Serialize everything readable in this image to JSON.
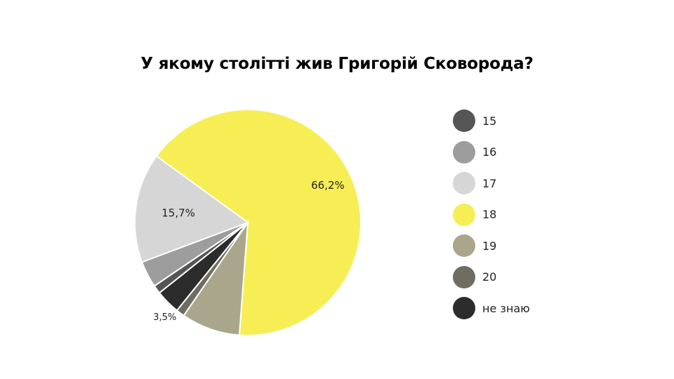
{
  "chart_data": {
    "type": "pie",
    "title": "У якому столітті жив Григорій Сковорода?",
    "start_angle_deg": -144,
    "direction": "clockwise",
    "slices": [
      {
        "name": "18",
        "value": 66.2,
        "color": "#f7ee55",
        "label": "66,2%"
      },
      {
        "name": "19",
        "value": 8.4,
        "color": "#a9a68c",
        "label": ""
      },
      {
        "name": "20",
        "value": 1.2,
        "color": "#6f6c61",
        "label": ""
      },
      {
        "name": "не знаю",
        "value": 3.5,
        "color": "#2c2c2c",
        "label": "3,5%"
      },
      {
        "name": "15",
        "value": 1.2,
        "color": "#555555",
        "label": ""
      },
      {
        "name": "16",
        "value": 3.8,
        "color": "#9d9d9d",
        "label": ""
      },
      {
        "name": "17",
        "value": 15.7,
        "color": "#d6d6d6",
        "label": "15,7%"
      }
    ],
    "legend": {
      "placement": "right",
      "items": [
        {
          "name": "15",
          "color": "#555555"
        },
        {
          "name": "16",
          "color": "#9d9d9d"
        },
        {
          "name": "17",
          "color": "#d6d6d6"
        },
        {
          "name": "18",
          "color": "#f7ee55"
        },
        {
          "name": "19",
          "color": "#a9a68c"
        },
        {
          "name": "20",
          "color": "#6f6c61"
        },
        {
          "name": "не знаю",
          "color": "#2c2c2c"
        }
      ]
    }
  }
}
